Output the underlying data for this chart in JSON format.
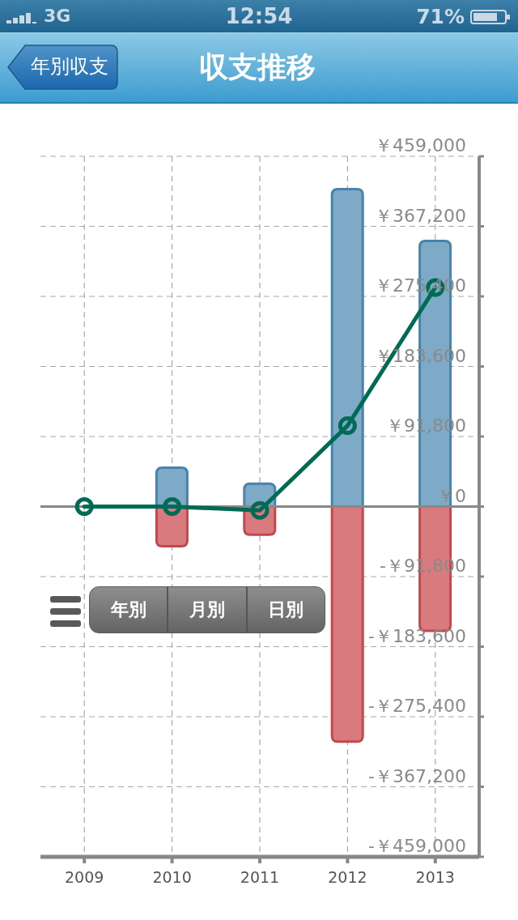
{
  "chart_data": {
    "type": "bar",
    "title": "収支推移",
    "annotations": [
      "3G",
      "12:54",
      "71%",
      "年別収支",
      "年別",
      "月別",
      "日別"
    ],
    "categories": [
      "2009",
      "2010",
      "2011",
      "2012",
      "2013"
    ],
    "series": [
      {
        "color": "#7eaac7",
        "values": [
          null,
          51000,
          30000,
          416000,
          348000
        ]
      },
      {
        "color": "#d97b7e",
        "values": [
          null,
          -52000,
          -37000,
          -308000,
          -163000
        ]
      },
      {
        "type": "line",
        "color": "#006b55",
        "values": [
          0,
          0,
          -5000,
          106000,
          287000
        ]
      }
    ],
    "stacked": true,
    "ylim": [
      -459000,
      459000
    ],
    "yticks": [
      {
        "value": -459000,
        "label": "-￥459,000"
      },
      {
        "value": -367200,
        "label": "-￥367,200"
      },
      {
        "value": -275400,
        "label": "-￥275,400"
      },
      {
        "value": -183600,
        "label": "-￥183,600"
      },
      {
        "value": -91800,
        "label": "-￥91,800"
      },
      {
        "value": 0,
        "label": "￥0"
      },
      {
        "value": 91800,
        "label": "￥91,800"
      },
      {
        "value": 183600,
        "label": "￥183,600"
      },
      {
        "value": 275400,
        "label": "￥275,400"
      },
      {
        "value": 367200,
        "label": "￥367,200"
      },
      {
        "value": 459000,
        "label": "￥459,000"
      }
    ],
    "grid": true,
    "marker": "circle",
    "ref_lines": [
      {
        "axis": "y",
        "value": 0,
        "color": "#888888"
      }
    ]
  }
}
